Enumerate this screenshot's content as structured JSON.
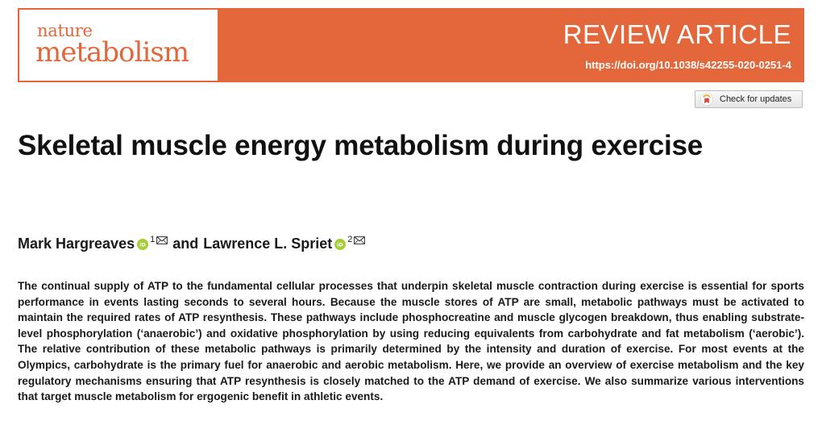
{
  "journal": {
    "name_top": "nature",
    "name_bottom": "metabolism",
    "brand_color": "#e3673a"
  },
  "header": {
    "article_type": "REVIEW ARTICLE",
    "doi": "https://doi.org/10.1038/s42255-020-0251-4"
  },
  "updates": {
    "label": "Check for updates",
    "icon": "crossmark-icon"
  },
  "article": {
    "title": "Skeletal muscle energy metabolism during exercise",
    "authors": [
      {
        "name": "Mark Hargreaves",
        "affiliation": "1"
      },
      {
        "name": "Lawrence L. Spriet",
        "affiliation": "2"
      }
    ],
    "author_separator": "and",
    "abstract": "The continual supply of ATP to the fundamental cellular processes that underpin skeletal muscle contraction during exercise is essential for sports performance in events lasting seconds to several hours. Because the muscle stores of ATP are small, metabolic pathways must be activated to maintain the required rates of ATP resynthesis. These pathways include phosphocreatine and muscle glycogen breakdown, thus enabling substrate-level phosphorylation (‘anaerobic’) and oxidative phosphorylation by using reducing equivalents from carbohydrate and fat metabolism (‘aerobic’). The relative contribution of these metabolic pathways is primarily determined by the intensity and duration of exercise. For most events at the Olympics, carbohydrate is the primary fuel for anaerobic and aerobic metabolism. Here, we provide an overview of exercise metabolism and the key regulatory mechanisms ensuring that ATP resynthesis is closely matched to the ATP demand of exercise. We also summarize various interventions that target muscle metabolism for ergogenic benefit in athletic events."
  },
  "icons": {
    "orcid": "orcid-icon",
    "email": "envelope-icon",
    "orcid_color": "#a6ce39"
  }
}
